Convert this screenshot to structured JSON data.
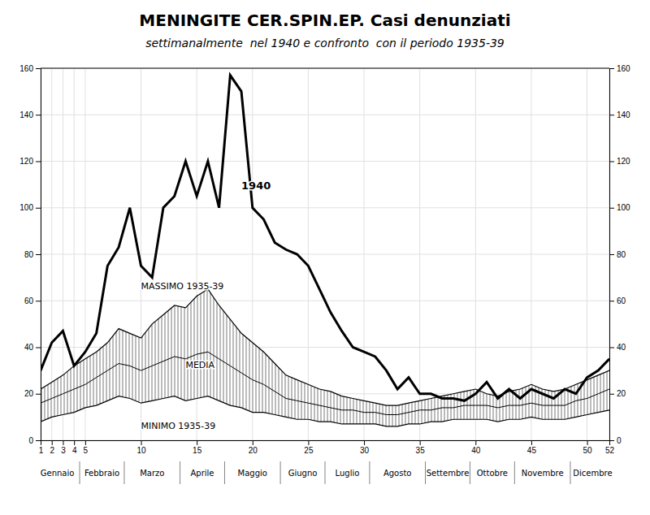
{
  "chart_data": {
    "type": "line",
    "title": "MENINGITE CER.SPIN.EP. Casi denunziati",
    "subtitle": "settimanalmente  nel 1940 e confronto  con il periodo 1935-39",
    "x": [
      1,
      2,
      3,
      4,
      5,
      6,
      7,
      8,
      9,
      10,
      11,
      12,
      13,
      14,
      15,
      16,
      17,
      18,
      19,
      20,
      21,
      22,
      23,
      24,
      25,
      26,
      27,
      28,
      29,
      30,
      31,
      32,
      33,
      34,
      35,
      36,
      37,
      38,
      39,
      40,
      41,
      42,
      43,
      44,
      45,
      46,
      47,
      48,
      49,
      50,
      51,
      52
    ],
    "series": [
      {
        "color": "black",
        "line_style": "solid",
        "values": [
          30,
          42,
          47,
          32,
          38,
          46,
          75,
          83,
          100,
          75,
          70,
          100,
          105,
          120,
          105,
          120,
          100,
          157,
          150,
          100,
          95,
          85,
          82,
          80,
          75,
          65,
          55,
          47,
          40,
          38,
          36,
          30,
          22,
          27,
          20,
          20,
          18,
          18,
          17,
          20,
          25,
          18,
          22,
          18,
          22,
          20,
          18,
          22,
          20,
          27,
          30,
          35
        ]
      },
      {
        "color": "black",
        "line_style": "solid",
        "values": [
          22,
          25,
          28,
          32,
          35,
          38,
          42,
          48,
          46,
          44,
          50,
          54,
          58,
          57,
          62,
          65,
          58,
          52,
          46,
          42,
          38,
          33,
          28,
          26,
          24,
          22,
          21,
          19,
          18,
          17,
          16,
          15,
          15,
          16,
          17,
          18,
          19,
          20,
          21,
          22,
          20,
          19,
          21,
          22,
          24,
          22,
          21,
          22,
          24,
          26,
          28,
          30
        ]
      },
      {
        "color": "black",
        "line_style": "solid",
        "values": [
          16,
          18,
          20,
          22,
          24,
          27,
          30,
          33,
          32,
          30,
          32,
          34,
          36,
          35,
          37,
          38,
          35,
          32,
          29,
          26,
          24,
          21,
          18,
          17,
          16,
          15,
          14,
          13,
          13,
          12,
          12,
          11,
          11,
          12,
          13,
          13,
          14,
          14,
          15,
          15,
          15,
          14,
          15,
          15,
          16,
          15,
          15,
          15,
          17,
          18,
          20,
          22
        ]
      },
      {
        "color": "black",
        "line_style": "solid",
        "values": [
          8,
          10,
          11,
          12,
          14,
          15,
          17,
          19,
          18,
          16,
          17,
          18,
          19,
          17,
          18,
          19,
          17,
          15,
          14,
          12,
          12,
          11,
          10,
          9,
          9,
          8,
          8,
          7,
          7,
          7,
          7,
          6,
          6,
          7,
          7,
          8,
          8,
          9,
          9,
          9,
          9,
          8,
          9,
          9,
          10,
          9,
          9,
          9,
          10,
          11,
          12,
          13
        ]
      }
    ],
    "annotations": [
      {
        "text": "1940",
        "x": 19,
        "y": 108
      },
      {
        "text": "MASSIMO 1935-39",
        "x": 10,
        "y": 65
      },
      {
        "text": "MEDIA",
        "x": 14,
        "y": 31
      },
      {
        "text": "MINIMO 1935-39",
        "x": 10,
        "y": 5
      }
    ],
    "months": {
      "labels": [
        "Gennaio",
        "Febbraio",
        "Marzo",
        "Aprile",
        "Maggio",
        "Giugno",
        "Luglio",
        "Agosto",
        "Settembre",
        "Ottobre",
        "Novembre",
        "Dicembre"
      ],
      "week_starts": [
        1,
        5,
        9,
        14,
        18,
        23,
        27,
        31,
        36,
        40,
        44,
        49
      ],
      "week_ends": [
        4,
        8,
        13,
        17,
        22,
        26,
        30,
        35,
        39,
        43,
        48,
        52
      ]
    },
    "xlim": [
      1,
      52
    ],
    "xticks": [
      1,
      2,
      3,
      4,
      5,
      10,
      15,
      20,
      25,
      30,
      35,
      40,
      45,
      50,
      52
    ],
    "ylim": [
      0,
      160
    ],
    "yticks": [
      0,
      20,
      40,
      60,
      80,
      100,
      120,
      140,
      160
    ],
    "y2lim": [
      0,
      160
    ],
    "y2ticks": [
      0,
      20,
      40,
      60,
      80,
      100,
      120,
      140,
      160
    ],
    "grid": true
  }
}
